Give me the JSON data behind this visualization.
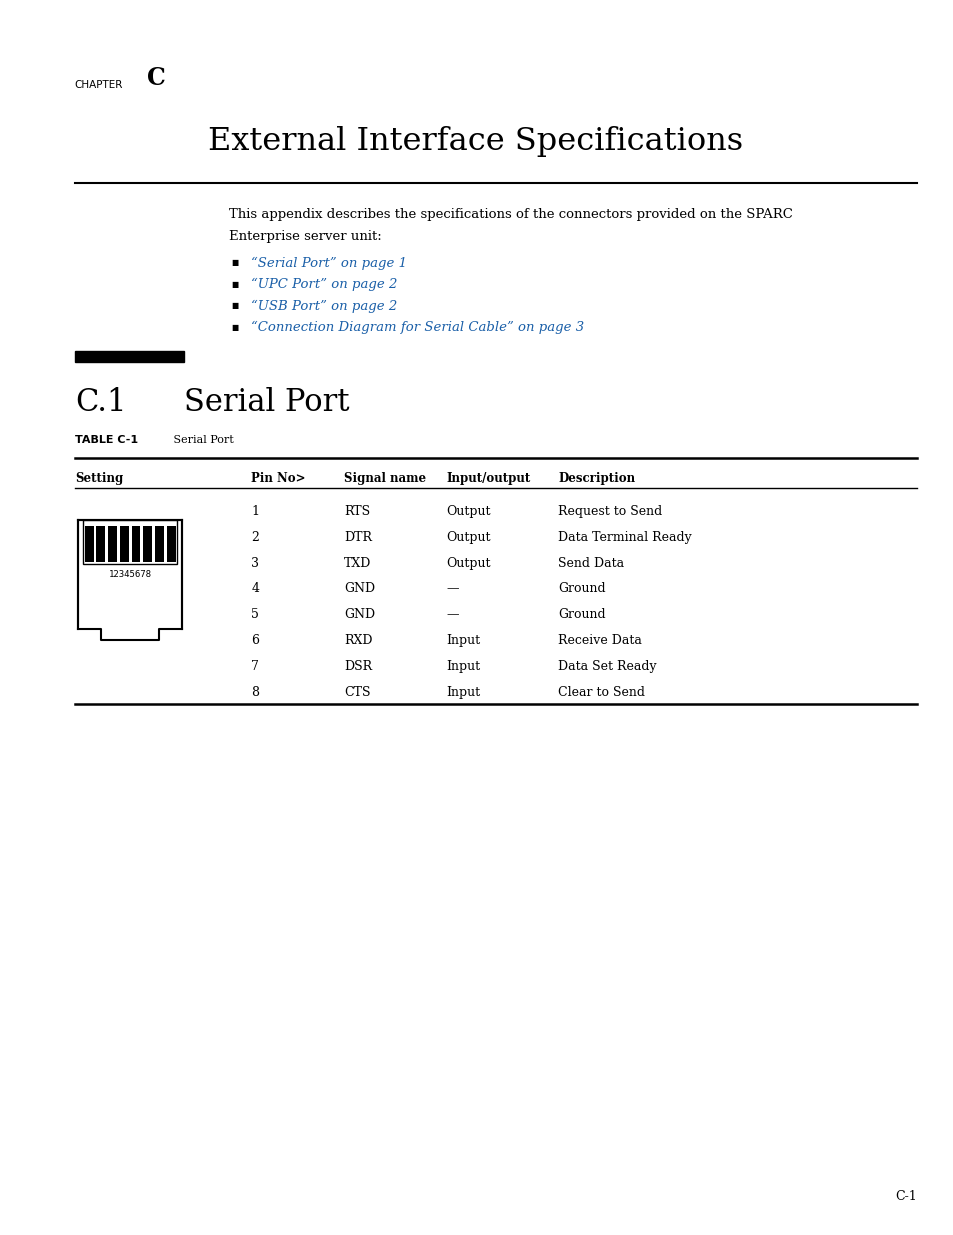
{
  "chapter_label": "CHAPTER",
  "chapter_letter": "C",
  "main_title": "External Interface Specifications",
  "intro_line1": "This appendix describes the specifications of the connectors provided on the SPARC",
  "intro_line2": "Enterprise server unit:",
  "bullet_items": [
    "“Serial Port” on page 1",
    "“UPC Port” on page 2",
    "“USB Port” on page 2",
    "“Connection Diagram for Serial Cable” on page 3"
  ],
  "section_number": "C.1",
  "section_title": "Serial Port",
  "table_label": "TABLE C-1",
  "table_title": "Serial Port",
  "col_headers": [
    "Setting",
    "Pin No>",
    "Signal name",
    "Input/output",
    "Description"
  ],
  "table_rows": [
    [
      "1",
      "RTS",
      "Output",
      "Request to Send"
    ],
    [
      "2",
      "DTR",
      "Output",
      "Data Terminal Ready"
    ],
    [
      "3",
      "TXD",
      "Output",
      "Send Data"
    ],
    [
      "4",
      "GND",
      "—",
      "Ground"
    ],
    [
      "5",
      "GND",
      "—",
      "Ground"
    ],
    [
      "6",
      "RXD",
      "Input",
      "Receive Data"
    ],
    [
      "7",
      "DSR",
      "Input",
      "Data Set Ready"
    ],
    [
      "8",
      "CTS",
      "Input",
      "Clear to Send"
    ]
  ],
  "page_num": "C-1",
  "link_color": "#1a5fa8",
  "text_color": "#000000",
  "bg_color": "#ffffff"
}
